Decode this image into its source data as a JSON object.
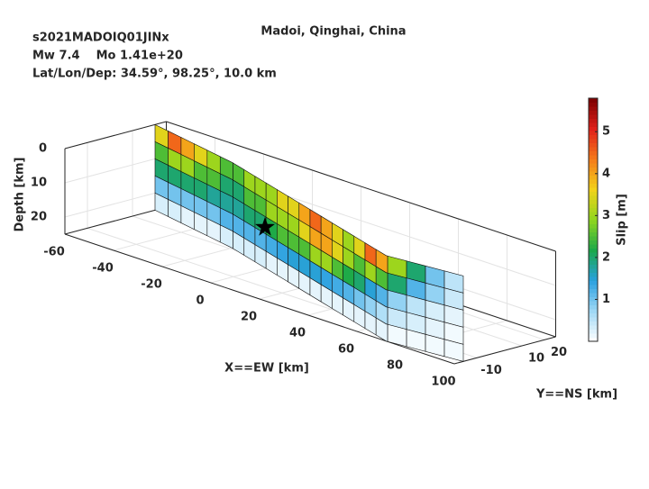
{
  "chart_data": {
    "type": "surface",
    "event_id": "s2021MADOIQ01JINx",
    "magnitude_line": "Mw 7.4    Mo 1.41e+20",
    "location_line": "Lat/Lon/Dep: 34.59°, 98.25°, 10.0 km",
    "title": "Madoi, Qinghai, China",
    "xlabel": "X==EW [km]",
    "ylabel": "Y==NS [km]",
    "zlabel": "Depth [km]",
    "colorbar_label": "Slip [m]",
    "xlim": [
      -60,
      100
    ],
    "ylim": [
      -20,
      25
    ],
    "zlim": [
      0,
      25
    ],
    "xticks": [
      -60,
      -40,
      -20,
      0,
      20,
      40,
      60,
      80,
      100
    ],
    "yticks": [
      -10,
      10,
      20
    ],
    "zticks": [
      0,
      10,
      20
    ],
    "clim": [
      0,
      5.8
    ],
    "cticks": [
      1,
      2,
      3,
      4,
      5
    ],
    "colormap": [
      "#ffffff",
      "#9fd8f5",
      "#2aa0e0",
      "#1aa84a",
      "#8fd61e",
      "#f2d21a",
      "#f57a1a",
      "#e0201a",
      "#7a0000"
    ],
    "grid": true,
    "trace_x": [
      -60,
      -20,
      72,
      100
    ],
    "trace_y": [
      20,
      11,
      -20,
      -16
    ],
    "row_depths": [
      0,
      5,
      10,
      15,
      20,
      25
    ],
    "slip": [
      [
        3.5,
        4.5,
        4,
        3.5,
        3,
        2.5,
        2.5,
        3,
        3,
        3,
        3.5,
        3.5,
        4,
        4.5,
        4,
        3.5,
        3,
        3.5,
        4.5,
        4,
        3,
        2,
        1,
        0.5
      ],
      [
        2.5,
        3,
        3,
        2.5,
        2.5,
        2,
        2,
        2.5,
        2.5,
        3,
        3,
        3,
        3.5,
        4,
        4,
        3.5,
        3,
        2.5,
        3,
        2.5,
        2,
        1.2,
        0.8,
        0.4
      ],
      [
        2,
        2,
        2,
        2,
        1.8,
        1.8,
        1.8,
        2,
        2,
        2.2,
        2.5,
        2.5,
        2.5,
        3,
        3,
        2.5,
        2.2,
        2,
        1.5,
        1.2,
        0.8,
        0.5,
        0.3,
        0.2
      ],
      [
        1,
        1,
        1,
        1,
        1,
        1.2,
        1.2,
        1.2,
        1.2,
        1.3,
        1.4,
        1.5,
        1.5,
        1.5,
        1.4,
        1.3,
        1.2,
        1,
        0.8,
        0.6,
        0.4,
        0.3,
        0.2,
        0.1
      ],
      [
        0.3,
        0.3,
        0.2,
        0.2,
        0.2,
        0.3,
        0.3,
        0.3,
        0.3,
        0.2,
        0.2,
        0.2,
        0.2,
        0.2,
        0.2,
        0.2,
        0.2,
        0.2,
        0.2,
        0.2,
        0.1,
        0.1,
        0.1,
        0.1
      ]
    ],
    "hypocenter": {
      "x": 0,
      "y": 4,
      "z": 13
    }
  }
}
